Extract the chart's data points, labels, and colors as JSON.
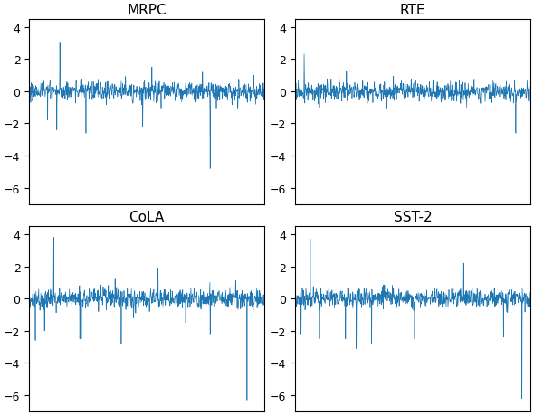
{
  "titles": [
    "MRPC",
    "RTE",
    "CoLA",
    "SST-2"
  ],
  "n_points": 768,
  "ylim": [
    -7,
    4.5
  ],
  "yticks": [
    -6,
    -4,
    -2,
    0,
    2,
    4
  ],
  "line_color": "#1f77b4",
  "line_width": 0.5,
  "noise_scale": 0.3,
  "figsize": [
    5.9,
    4.6
  ],
  "dpi": 100,
  "seeds": [
    1,
    2,
    3,
    4
  ],
  "spike_configs": [
    {
      "positions": [
        60,
        90,
        100,
        185,
        370,
        400,
        430,
        590,
        610,
        680
      ],
      "heights": [
        -1.8,
        -2.4,
        3.0,
        -2.6,
        -2.2,
        1.5,
        -1.1,
        -4.8,
        -1.1,
        -1.1
      ]
    },
    {
      "positions": [
        30,
        80,
        300,
        560,
        720
      ],
      "heights": [
        2.3,
        -1.0,
        -1.1,
        -1.0,
        -2.6
      ]
    },
    {
      "positions": [
        20,
        50,
        80,
        165,
        170,
        280,
        300,
        340,
        420,
        510,
        590,
        710,
        730
      ],
      "heights": [
        -2.6,
        -2.0,
        3.8,
        -2.5,
        -2.5,
        1.2,
        -2.8,
        -1.2,
        1.9,
        -1.5,
        -2.2,
        -6.3,
        -1.0
      ]
    },
    {
      "positions": [
        20,
        50,
        80,
        165,
        200,
        250,
        390,
        550,
        680,
        740
      ],
      "heights": [
        -2.2,
        3.7,
        -2.5,
        -2.5,
        -3.1,
        -2.8,
        -2.5,
        2.2,
        -2.4,
        -6.2
      ]
    }
  ]
}
